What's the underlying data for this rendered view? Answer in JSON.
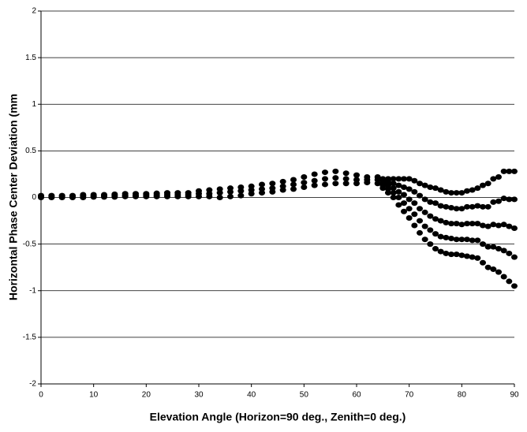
{
  "chart_data": {
    "type": "scatter",
    "xlabel": "Elevation Angle (Horizon=90 deg., Zenith=0 deg.)",
    "ylabel": "Horizontal Phase Center Deviation (mm",
    "color": "#000000",
    "grid": true,
    "xlim": [
      0,
      90
    ],
    "xticks": [
      0,
      10,
      20,
      30,
      40,
      50,
      60,
      70,
      80,
      90
    ],
    "ylim": [
      -2,
      2
    ],
    "yticks": [
      2,
      1.5,
      1,
      0.5,
      0,
      -0.5,
      -1,
      -1.5,
      -2
    ],
    "x": [
      0,
      0,
      0,
      2,
      2,
      2,
      4,
      4,
      4,
      6,
      6,
      6,
      8,
      8,
      8,
      10,
      10,
      10,
      12,
      12,
      12,
      14,
      14,
      14,
      16,
      16,
      16,
      18,
      18,
      18,
      20,
      20,
      20,
      22,
      22,
      22,
      24,
      24,
      24,
      26,
      26,
      26,
      28,
      28,
      28,
      30,
      30,
      30,
      32,
      32,
      32,
      34,
      34,
      34,
      36,
      36,
      36,
      38,
      38,
      38,
      40,
      40,
      40,
      42,
      42,
      42,
      44,
      44,
      44,
      46,
      46,
      46,
      48,
      48,
      48,
      50,
      50,
      50,
      52,
      52,
      52,
      54,
      54,
      54,
      56,
      56,
      56,
      58,
      58,
      58,
      60,
      60,
      60,
      62,
      62,
      62,
      64,
      64,
      64,
      65,
      65,
      65,
      65,
      65,
      66,
      66,
      66,
      66,
      66,
      67,
      67,
      67,
      67,
      67,
      68,
      68,
      68,
      68,
      68,
      69,
      69,
      69,
      69,
      69,
      70,
      70,
      70,
      70,
      70,
      71,
      71,
      71,
      71,
      71,
      72,
      72,
      72,
      72,
      72,
      73,
      73,
      73,
      73,
      73,
      74,
      74,
      74,
      74,
      74,
      75,
      75,
      75,
      75,
      75,
      76,
      76,
      76,
      76,
      76,
      77,
      77,
      77,
      77,
      77,
      78,
      78,
      78,
      78,
      78,
      79,
      79,
      79,
      79,
      79,
      80,
      80,
      80,
      80,
      80,
      81,
      81,
      81,
      81,
      81,
      82,
      82,
      82,
      82,
      82,
      83,
      83,
      83,
      83,
      83,
      84,
      84,
      84,
      84,
      84,
      85,
      85,
      85,
      85,
      85,
      86,
      86,
      86,
      86,
      86,
      87,
      87,
      87,
      87,
      87,
      88,
      88,
      88,
      88,
      88,
      89,
      89,
      89,
      89,
      89,
      90,
      90,
      90,
      90,
      90
    ],
    "values": [
      0,
      0.01,
      0.02,
      0,
      0.01,
      0.02,
      0,
      0.01,
      0.02,
      0,
      0.01,
      0.02,
      0,
      0.015,
      0.03,
      0.005,
      0.015,
      0.03,
      0.005,
      0.02,
      0.03,
      0.005,
      0.02,
      0.035,
      0.01,
      0.02,
      0.04,
      0.01,
      0.02,
      0.04,
      0.01,
      0.025,
      0.04,
      0.01,
      0.025,
      0.045,
      0.01,
      0.03,
      0.05,
      0.01,
      0.03,
      0.05,
      0.01,
      0.03,
      0.05,
      0.01,
      0.04,
      0.07,
      0.01,
      0.04,
      0.08,
      0,
      0.05,
      0.09,
      0.01,
      0.06,
      0.1,
      0.02,
      0.07,
      0.11,
      0.04,
      0.08,
      0.12,
      0.05,
      0.09,
      0.14,
      0.06,
      0.1,
      0.15,
      0.08,
      0.12,
      0.17,
      0.09,
      0.14,
      0.19,
      0.11,
      0.16,
      0.22,
      0.13,
      0.18,
      0.25,
      0.14,
      0.2,
      0.27,
      0.15,
      0.21,
      0.28,
      0.15,
      0.2,
      0.26,
      0.15,
      0.19,
      0.24,
      0.16,
      0.19,
      0.22,
      0.15,
      0.19,
      0.22,
      0.1,
      0.13,
      0.15,
      0.18,
      0.2,
      0.05,
      0.09,
      0.13,
      0.17,
      0.2,
      0,
      0.05,
      0.1,
      0.15,
      0.2,
      -0.08,
      0,
      0.06,
      0.13,
      0.2,
      -0.15,
      -0.06,
      0.03,
      0.11,
      0.2,
      -0.22,
      -0.12,
      -0.02,
      0.09,
      0.2,
      -0.3,
      -0.18,
      -0.06,
      0.06,
      0.18,
      -0.38,
      -0.25,
      -0.12,
      0.02,
      0.15,
      -0.45,
      -0.31,
      -0.16,
      -0.02,
      0.13,
      -0.5,
      -0.35,
      -0.2,
      -0.05,
      0.11,
      -0.55,
      -0.39,
      -0.23,
      -0.06,
      0.1,
      -0.58,
      -0.42,
      -0.25,
      -0.09,
      0.08,
      -0.6,
      -0.43,
      -0.27,
      -0.1,
      0.06,
      -0.61,
      -0.44,
      -0.28,
      -0.11,
      0.05,
      -0.61,
      -0.45,
      -0.28,
      -0.12,
      0.05,
      -0.62,
      -0.45,
      -0.29,
      -0.12,
      0.05,
      -0.63,
      -0.45,
      -0.28,
      -0.1,
      0.07,
      -0.64,
      -0.46,
      -0.28,
      -0.1,
      0.08,
      -0.65,
      -0.46,
      -0.28,
      -0.09,
      0.1,
      -0.7,
      -0.5,
      -0.3,
      -0.1,
      0.13,
      -0.75,
      -0.53,
      -0.31,
      -0.1,
      0.15,
      -0.77,
      -0.53,
      -0.29,
      -0.05,
      0.2,
      -0.8,
      -0.55,
      -0.3,
      -0.04,
      0.22,
      -0.85,
      -0.57,
      -0.29,
      -0.01,
      0.28,
      -0.9,
      -0.6,
      -0.31,
      -0.02,
      0.28,
      -0.95,
      -0.64,
      -0.33,
      -0.02,
      0.28
    ]
  }
}
